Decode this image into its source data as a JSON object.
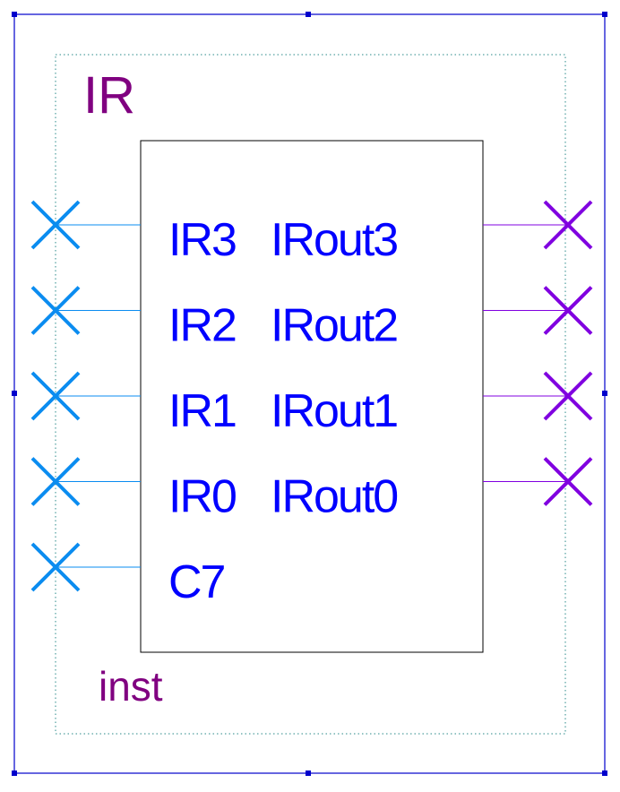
{
  "symbol": {
    "title": "IR",
    "instance": "inst",
    "inputs": [
      {
        "name": "IR3"
      },
      {
        "name": "IR2"
      },
      {
        "name": "IR1"
      },
      {
        "name": "IR0"
      },
      {
        "name": "C7"
      }
    ],
    "outputs": [
      {
        "name": "IRout3"
      },
      {
        "name": "IRout2"
      },
      {
        "name": "IRout1"
      },
      {
        "name": "IRout0"
      }
    ]
  },
  "colors": {
    "frame": "#0000cc",
    "title_text": "#800080",
    "pin_text": "#0000ff",
    "input_pin": "#0a8cf0",
    "output_pin": "#8000e0",
    "box_border": "#000000",
    "dotted_border": "#2a8a8a"
  }
}
